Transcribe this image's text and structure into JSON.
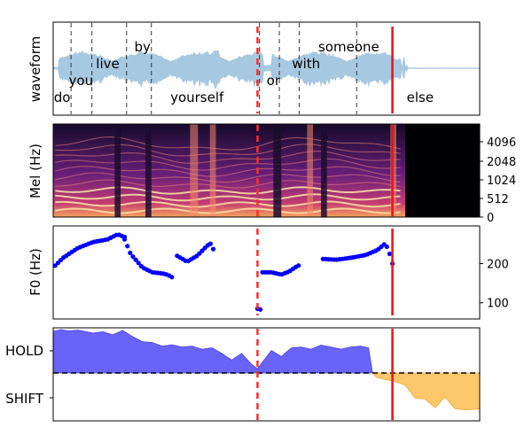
{
  "chart_data": [
    {
      "type": "line",
      "panel": "waveform",
      "ylabel": "waveform",
      "words": [
        {
          "text": "do",
          "x": 0.09,
          "level": 2
        },
        {
          "text": "you",
          "x": 0.28,
          "level": 1
        },
        {
          "text": "live",
          "x": 0.55,
          "level": 0.5
        },
        {
          "text": "by",
          "x": 0.9,
          "level": 0
        },
        {
          "text": "yourself",
          "x": 1.45,
          "level": 2
        },
        {
          "text": "or",
          "x": 2.22,
          "level": 1
        },
        {
          "text": "with",
          "x": 2.55,
          "level": 0.5
        },
        {
          "text": "someone",
          "x": 2.98,
          "level": 0
        },
        {
          "text": "else",
          "x": 3.7,
          "level": 2
        }
      ],
      "word_boundaries": [
        0.18,
        0.39,
        0.74,
        0.99,
        2.08,
        2.28,
        2.48,
        3.06
      ],
      "prediction_time": 2.06,
      "end_time": 3.42,
      "wave_color": "#a6c8e0"
    },
    {
      "type": "heatmap",
      "panel": "mel",
      "ylabel": "Mel (Hz)",
      "ytick_labels": [
        "0",
        "512",
        "1024",
        "2048",
        "4096"
      ],
      "colormap": "magma"
    },
    {
      "type": "scatter",
      "panel": "f0",
      "ylabel": "F0 (Hz)",
      "ytick_labels": [
        "100",
        "200"
      ],
      "ytick_values": [
        100,
        200
      ],
      "ylim": [
        70,
        285
      ],
      "marker_color": "#0000ff",
      "segments": [
        {
          "start": 0.02,
          "end": 0.72,
          "anchors": [
            [
              0.02,
              195
            ],
            [
              0.1,
              215
            ],
            [
              0.25,
              240
            ],
            [
              0.4,
              255
            ],
            [
              0.55,
              262
            ],
            [
              0.65,
              275
            ],
            [
              0.72,
              268
            ]
          ]
        },
        {
          "start": 0.72,
          "end": 1.2,
          "anchors": [
            [
              0.72,
              262
            ],
            [
              0.78,
              225
            ],
            [
              0.9,
              190
            ],
            [
              1.0,
              178
            ],
            [
              1.1,
              175
            ],
            [
              1.15,
              172
            ],
            [
              1.2,
              165
            ]
          ]
        },
        {
          "start": 1.25,
          "end": 1.63,
          "anchors": [
            [
              1.25,
              220
            ],
            [
              1.35,
              205
            ],
            [
              1.45,
              220
            ],
            [
              1.53,
              240
            ],
            [
              1.58,
              252
            ],
            [
              1.6,
              248
            ],
            [
              1.63,
              225
            ]
          ]
        },
        {
          "start": 2.06,
          "end": 2.1,
          "anchors": [
            [
              2.06,
              85
            ],
            [
              2.1,
              82
            ]
          ]
        },
        {
          "start": 2.11,
          "end": 2.48,
          "anchors": [
            [
              2.11,
              178
            ],
            [
              2.2,
              178
            ],
            [
              2.3,
              172
            ],
            [
              2.38,
              180
            ],
            [
              2.45,
              192
            ],
            [
              2.48,
              196
            ]
          ]
        },
        {
          "start": 2.72,
          "end": 3.42,
          "anchors": [
            [
              2.72,
              212
            ],
            [
              2.85,
              210
            ],
            [
              3.0,
              215
            ],
            [
              3.15,
              222
            ],
            [
              3.27,
              235
            ],
            [
              3.35,
              252
            ],
            [
              3.4,
              220
            ],
            [
              3.42,
              200
            ]
          ]
        }
      ],
      "prediction_time": 2.06,
      "end_time": 3.42
    },
    {
      "type": "area",
      "panel": "turn_taking",
      "ytick_labels": [
        "HOLD",
        "SHIFT"
      ],
      "hold_color": "#6a63f7",
      "shift_color": "#fdc76b",
      "hold_series": [
        [
          0.0,
          0.96
        ],
        [
          0.08,
          1.0
        ],
        [
          0.15,
          0.97
        ],
        [
          0.25,
          0.99
        ],
        [
          0.4,
          0.92
        ],
        [
          0.5,
          0.95
        ],
        [
          0.6,
          0.88
        ],
        [
          0.7,
          0.98
        ],
        [
          0.8,
          0.84
        ],
        [
          0.9,
          0.72
        ],
        [
          1.0,
          0.7
        ],
        [
          1.1,
          0.62
        ],
        [
          1.2,
          0.65
        ],
        [
          1.3,
          0.6
        ],
        [
          1.4,
          0.62
        ],
        [
          1.5,
          0.55
        ],
        [
          1.6,
          0.58
        ],
        [
          1.7,
          0.45
        ],
        [
          1.8,
          0.3
        ],
        [
          1.9,
          0.45
        ],
        [
          2.0,
          0.2
        ],
        [
          2.06,
          0.1
        ],
        [
          2.12,
          0.28
        ],
        [
          2.2,
          0.52
        ],
        [
          2.3,
          0.38
        ],
        [
          2.4,
          0.58
        ],
        [
          2.5,
          0.6
        ],
        [
          2.6,
          0.55
        ],
        [
          2.7,
          0.64
        ],
        [
          2.8,
          0.6
        ],
        [
          2.9,
          0.55
        ],
        [
          3.0,
          0.6
        ],
        [
          3.1,
          0.62
        ],
        [
          3.18,
          0.58
        ],
        [
          3.22,
          0.0
        ]
      ],
      "shift_series": [
        [
          3.22,
          0.0
        ],
        [
          3.26,
          -0.1
        ],
        [
          3.35,
          -0.15
        ],
        [
          3.45,
          -0.2
        ],
        [
          3.55,
          -0.28
        ],
        [
          3.65,
          -0.58
        ],
        [
          3.75,
          -0.6
        ],
        [
          3.85,
          -0.8
        ],
        [
          3.95,
          -0.55
        ],
        [
          4.05,
          -0.82
        ],
        [
          4.15,
          -0.85
        ],
        [
          4.3,
          -0.83
        ]
      ],
      "ylim": [
        -1,
        1
      ],
      "prediction_time": 2.06,
      "end_time": 3.42
    }
  ],
  "colors": {
    "prediction_line": "#ff2a2a",
    "end_line": "#ee1111",
    "boundary_line": "#333333"
  }
}
